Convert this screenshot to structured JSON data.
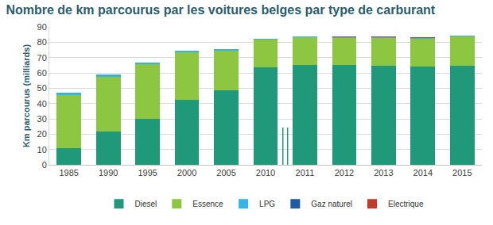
{
  "chart_data": {
    "type": "bar",
    "title": "Nombre de km parcourus par les voitures belges par type de carburant",
    "y_label": "Km parcourus (milliards)",
    "categories": [
      "1985",
      "1990",
      "1995",
      "2000",
      "2005",
      "2010",
      "2011",
      "2012",
      "2013",
      "2014",
      "2015"
    ],
    "series": [
      {
        "name": "Diesel",
        "color": "#20987a",
        "values": [
          11,
          21.5,
          30,
          42.5,
          48.5,
          63.5,
          65,
          65,
          64.5,
          64,
          64.5
        ]
      },
      {
        "name": "Essence",
        "color": "#8dc641",
        "values": [
          34.5,
          36,
          35.5,
          31,
          26,
          18,
          18.5,
          18,
          18.5,
          18.5,
          19.5
        ]
      },
      {
        "name": "LPG",
        "color": "#36b3e3",
        "values": [
          1.5,
          1.5,
          1,
          1,
          1,
          0.5,
          0.3,
          0.3,
          0.3,
          0.3,
          0.3
        ]
      },
      {
        "name": "Gaz naturel",
        "color": "#1f5aa6",
        "values": [
          0,
          0,
          0,
          0,
          0,
          0,
          0.05,
          0.05,
          0.05,
          0.05,
          0.05
        ]
      },
      {
        "name": "Electrique",
        "color": "#c0392b",
        "values": [
          0,
          0,
          0,
          0,
          0,
          0,
          0.2,
          0.2,
          0.2,
          0.2,
          0.2
        ]
      }
    ],
    "ylim": [
      0,
      90
    ],
    "yticks": [
      0,
      10,
      20,
      30,
      40,
      50,
      60,
      70,
      80,
      90
    ],
    "stacked": true,
    "grid": true,
    "legend": "bottom"
  }
}
